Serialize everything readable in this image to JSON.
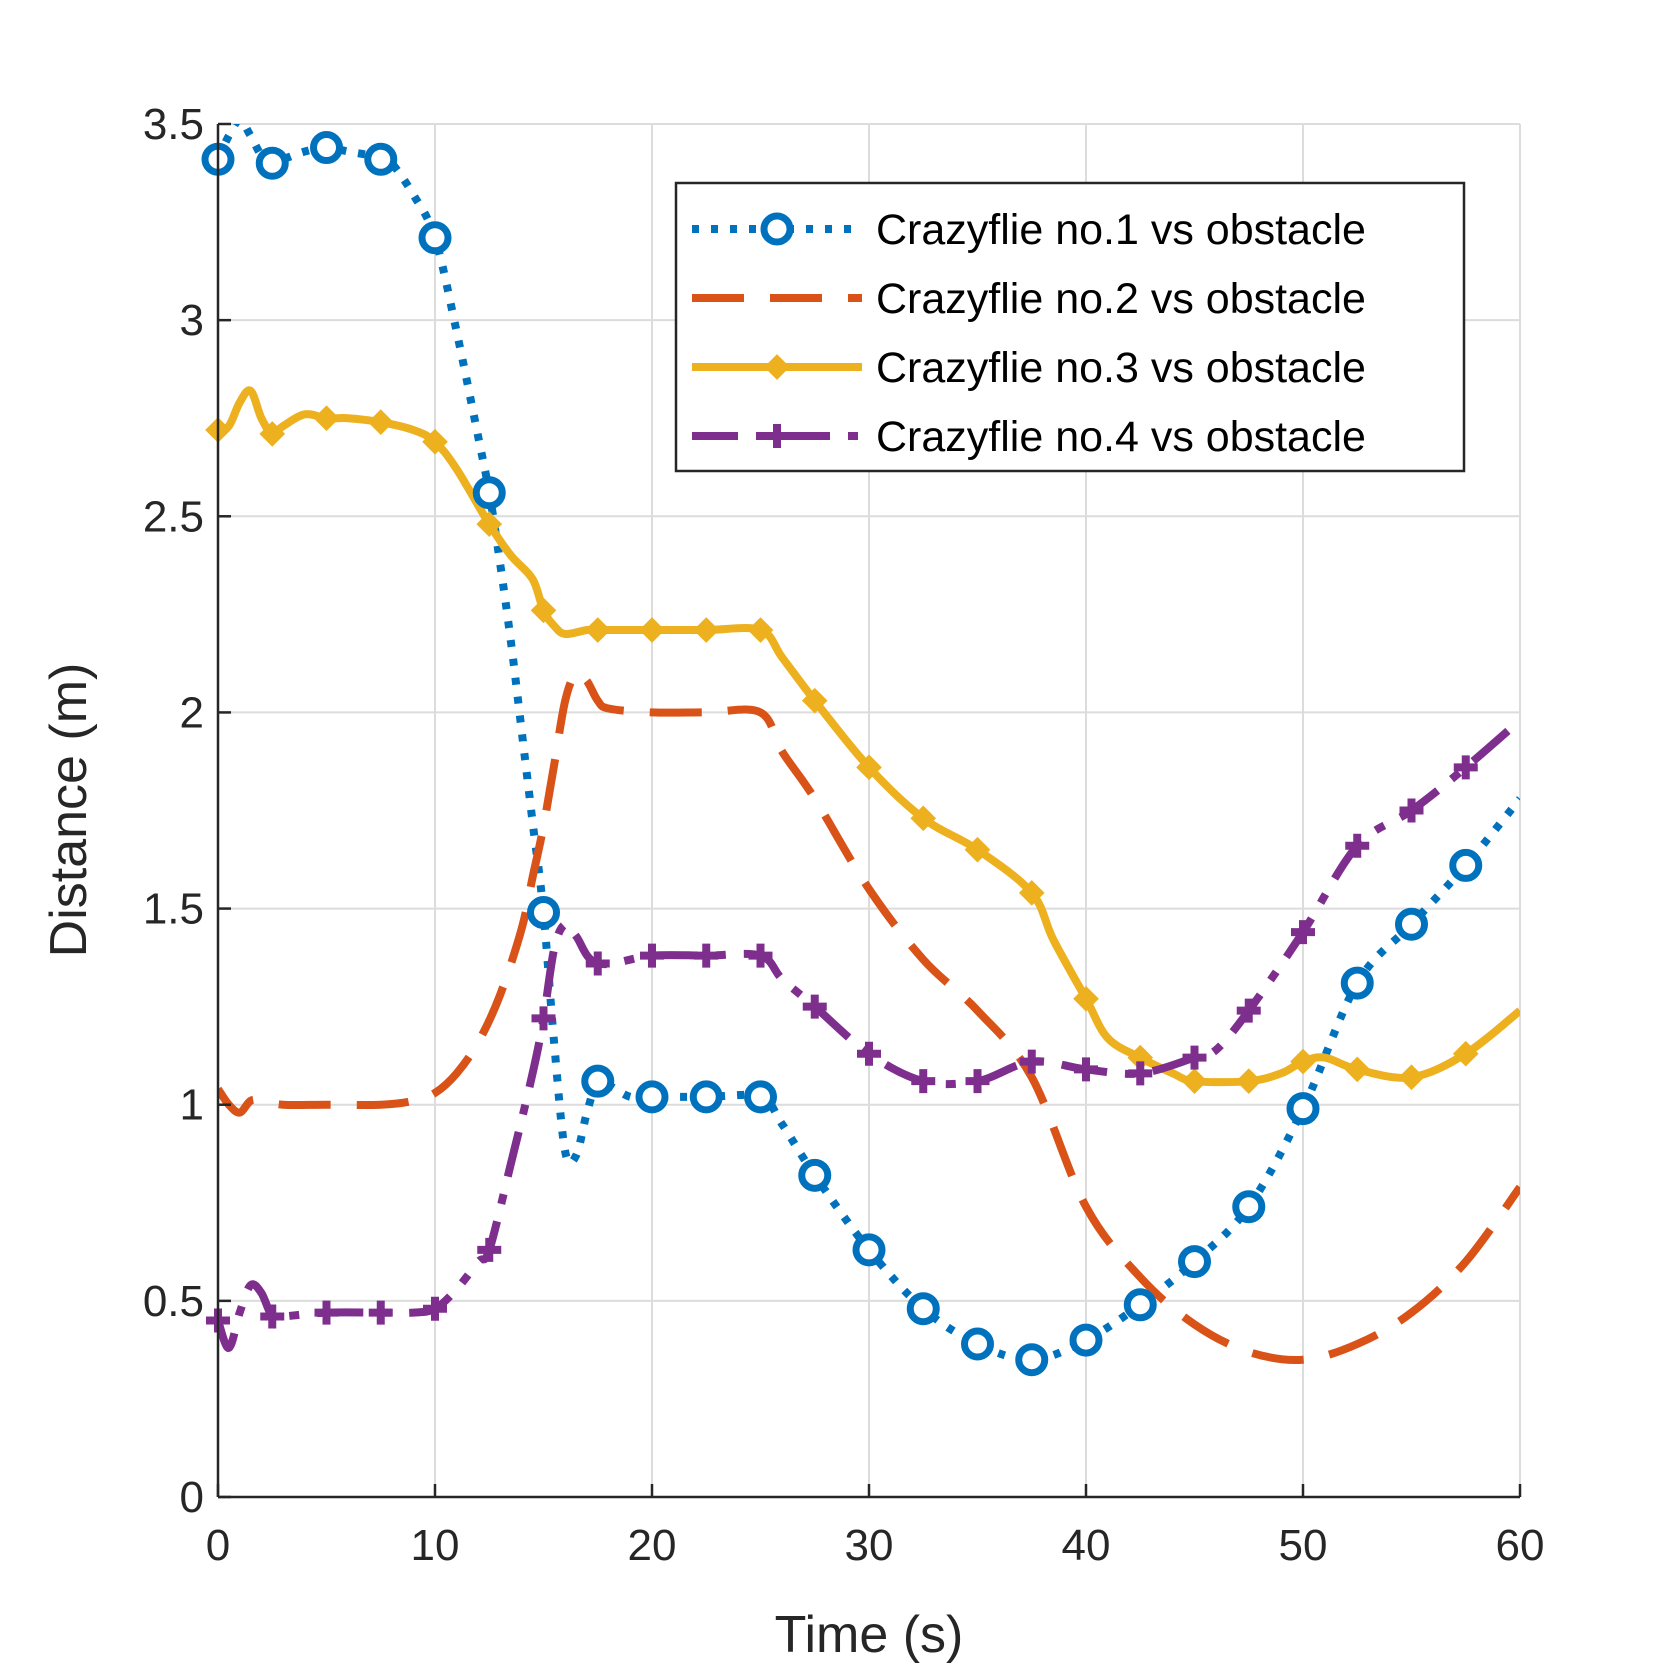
{
  "chart_data": {
    "type": "line",
    "title": "",
    "xlabel": "Time (s)",
    "ylabel": "Distance (m)",
    "xlim": [
      0,
      60
    ],
    "ylim": [
      0,
      3.5
    ],
    "xticks": [
      0,
      10,
      20,
      30,
      40,
      50,
      60
    ],
    "yticks": [
      0,
      0.5,
      1,
      1.5,
      2,
      2.5,
      3,
      3.5
    ],
    "xtick_labels": [
      "0",
      "10",
      "20",
      "30",
      "40",
      "50",
      "60"
    ],
    "ytick_labels": [
      "0",
      "0.5",
      "1",
      "1.5",
      "2",
      "2.5",
      "3",
      "3.5"
    ],
    "grid": true,
    "legend_position": "top-right",
    "series": [
      {
        "name": "Crazyflie no.1 vs obstacle",
        "color": "#0072BD",
        "style": "dotted",
        "marker": "circle",
        "x": [
          0,
          0.5,
          1,
          1.5,
          2,
          2.5,
          3,
          4,
          5,
          6,
          7,
          7.5,
          8,
          9,
          10,
          11,
          12,
          12.5,
          13,
          13.5,
          14,
          14.5,
          15,
          15.5,
          16,
          16.5,
          17,
          17.5,
          18,
          19,
          20,
          22.5,
          25,
          26,
          27.5,
          30,
          32.5,
          35,
          37.5,
          40,
          42.5,
          45,
          47.5,
          50,
          52.5,
          55,
          57.5,
          60
        ],
        "y": [
          3.41,
          3.47,
          3.51,
          3.47,
          3.42,
          3.4,
          3.41,
          3.43,
          3.44,
          3.43,
          3.42,
          3.41,
          3.4,
          3.32,
          3.21,
          2.97,
          2.7,
          2.56,
          2.38,
          2.18,
          1.95,
          1.72,
          1.49,
          1.15,
          0.88,
          0.87,
          0.98,
          1.06,
          1.05,
          1.02,
          1.02,
          1.02,
          1.02,
          0.95,
          0.82,
          0.63,
          0.48,
          0.39,
          0.35,
          0.4,
          0.49,
          0.6,
          0.74,
          0.99,
          1.31,
          1.46,
          1.61,
          1.78
        ],
        "markers_x": [
          0,
          2.5,
          5,
          7.5,
          10,
          12.5,
          15,
          17.5,
          20,
          22.5,
          25,
          27.5,
          30,
          32.5,
          35,
          37.5,
          40,
          42.5,
          45,
          47.5,
          50,
          52.5,
          55,
          57.5
        ]
      },
      {
        "name": "Crazyflie no.2 vs obstacle",
        "color": "#D95319",
        "style": "dashed",
        "marker": "none",
        "x": [
          0,
          0.5,
          1,
          1.5,
          2,
          3,
          5,
          7.5,
          9,
          10,
          11,
          12,
          13,
          14,
          14.5,
          15,
          15.5,
          16,
          16.5,
          17,
          17.5,
          18,
          20,
          22.5,
          25,
          26,
          27.5,
          30,
          32.5,
          35,
          37.5,
          40,
          42.5,
          45,
          47.5,
          50,
          52.5,
          55,
          57.5,
          60
        ],
        "y": [
          1.04,
          1.0,
          0.98,
          1.01,
          1.01,
          1.0,
          1.0,
          1.0,
          1.01,
          1.03,
          1.08,
          1.16,
          1.28,
          1.45,
          1.58,
          1.71,
          1.87,
          2.03,
          2.1,
          2.08,
          2.03,
          2.01,
          2.0,
          2.0,
          2.0,
          1.9,
          1.78,
          1.55,
          1.37,
          1.24,
          1.07,
          0.74,
          0.56,
          0.44,
          0.37,
          0.35,
          0.39,
          0.47,
          0.6,
          0.79
        ]
      },
      {
        "name": "Crazyflie no.3 vs obstacle",
        "color": "#EDB120",
        "style": "solid",
        "marker": "diamond",
        "x": [
          0,
          0.5,
          1,
          1.5,
          2,
          2.5,
          3,
          4,
          5,
          6,
          7.5,
          9,
          10,
          11,
          12.5,
          13.5,
          14.5,
          15,
          15.5,
          16,
          17,
          17.5,
          20,
          22.5,
          25,
          26,
          27.5,
          30,
          32.5,
          35,
          37.5,
          38.5,
          40,
          41,
          42.5,
          44,
          45,
          47.5,
          49,
          50,
          51,
          52.5,
          55,
          57.5,
          60
        ],
        "y": [
          2.72,
          2.73,
          2.79,
          2.82,
          2.75,
          2.71,
          2.73,
          2.76,
          2.75,
          2.75,
          2.74,
          2.72,
          2.69,
          2.62,
          2.48,
          2.4,
          2.34,
          2.26,
          2.22,
          2.2,
          2.21,
          2.21,
          2.21,
          2.21,
          2.21,
          2.14,
          2.03,
          1.86,
          1.73,
          1.65,
          1.54,
          1.42,
          1.27,
          1.17,
          1.12,
          1.08,
          1.06,
          1.06,
          1.08,
          1.11,
          1.12,
          1.09,
          1.07,
          1.13,
          1.24
        ],
        "markers_x": [
          0,
          2.5,
          5,
          7.5,
          10,
          12.5,
          15,
          17.5,
          20,
          22.5,
          25,
          27.5,
          30,
          32.5,
          35,
          37.5,
          40,
          42.5,
          45,
          47.5,
          50,
          52.5,
          55,
          57.5
        ]
      },
      {
        "name": "Crazyflie no.4 vs obstacle",
        "color": "#7E2F8E",
        "style": "dashdot",
        "marker": "plus",
        "x": [
          0,
          0.5,
          1,
          1.5,
          2,
          2.5,
          3,
          5,
          7.5,
          9,
          10,
          11,
          12,
          12.5,
          13.5,
          14.5,
          15,
          15.5,
          16,
          16.5,
          17.5,
          20,
          22.5,
          25,
          26,
          27.5,
          30,
          32.5,
          35,
          37.5,
          40,
          42.5,
          45,
          46,
          47.5,
          50,
          52.5,
          55,
          57.5,
          60
        ],
        "y": [
          0.45,
          0.38,
          0.47,
          0.54,
          0.52,
          0.46,
          0.46,
          0.47,
          0.47,
          0.47,
          0.48,
          0.53,
          0.6,
          0.63,
          0.85,
          1.08,
          1.22,
          1.4,
          1.46,
          1.43,
          1.36,
          1.38,
          1.38,
          1.38,
          1.32,
          1.25,
          1.13,
          1.06,
          1.06,
          1.11,
          1.09,
          1.08,
          1.12,
          1.14,
          1.24,
          1.44,
          1.66,
          1.75,
          1.86,
          1.98
        ],
        "markers_x": [
          0,
          2.5,
          5,
          7.5,
          10,
          12.5,
          15,
          17.5,
          20,
          22.5,
          25,
          27.5,
          30,
          32.5,
          35,
          37.5,
          40,
          42.5,
          45,
          47.5,
          50,
          52.5,
          55,
          57.5
        ]
      }
    ]
  }
}
